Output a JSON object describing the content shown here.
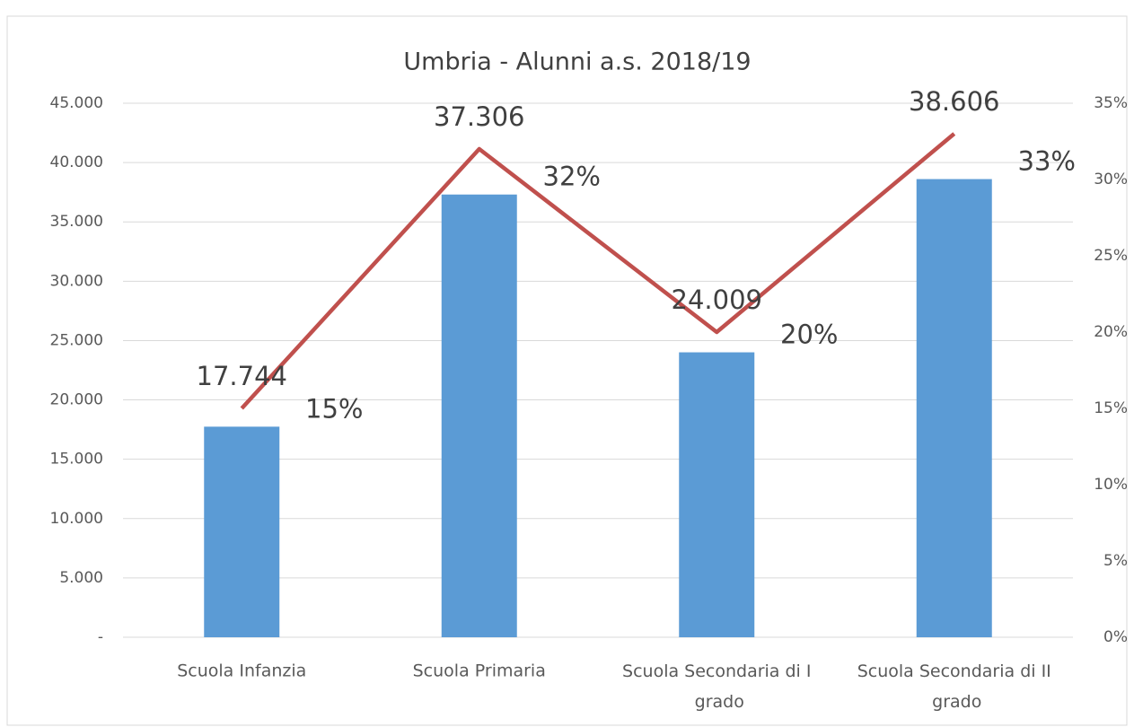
{
  "chart_data": {
    "type": "bar",
    "title": "Umbria - Alunni a.s. 2018/19",
    "categories": [
      "Scuola Infanzia",
      "Scuola Primaria",
      "Scuola Secondaria di I grado",
      "Scuola Secondaria di II grado"
    ],
    "series": [
      {
        "type": "bar",
        "color": "#5b9bd5",
        "values": [
          17744,
          37306,
          24009,
          38606
        ],
        "value_labels": [
          "17.744",
          "37.306",
          "24.009",
          "38.606"
        ]
      },
      {
        "type": "line",
        "axis": "y2",
        "color": "#c0504d",
        "values": [
          15,
          32,
          20,
          33
        ],
        "value_labels": [
          "15%",
          "32%",
          "20%",
          "33%"
        ]
      }
    ],
    "ylim": [
      0,
      45000
    ],
    "yticks": [
      {
        "value": 0,
        "label": "-"
      },
      {
        "value": 5000,
        "label": "5.000"
      },
      {
        "value": 10000,
        "label": "10.000"
      },
      {
        "value": 15000,
        "label": "15.000"
      },
      {
        "value": 20000,
        "label": "20.000"
      },
      {
        "value": 25000,
        "label": "25.000"
      },
      {
        "value": 30000,
        "label": "30.000"
      },
      {
        "value": 35000,
        "label": "35.000"
      },
      {
        "value": 40000,
        "label": "40.000"
      },
      {
        "value": 45000,
        "label": "45.000"
      }
    ],
    "y2lim": [
      0,
      35
    ],
    "y2ticks": [
      {
        "value": 0,
        "label": "0%"
      },
      {
        "value": 5,
        "label": "5%"
      },
      {
        "value": 10,
        "label": "10%"
      },
      {
        "value": 15,
        "label": "15%"
      },
      {
        "value": 20,
        "label": "20%"
      },
      {
        "value": 25,
        "label": "25%"
      },
      {
        "value": 30,
        "label": "30%"
      },
      {
        "value": 35,
        "label": "35%"
      }
    ],
    "grid": true
  }
}
